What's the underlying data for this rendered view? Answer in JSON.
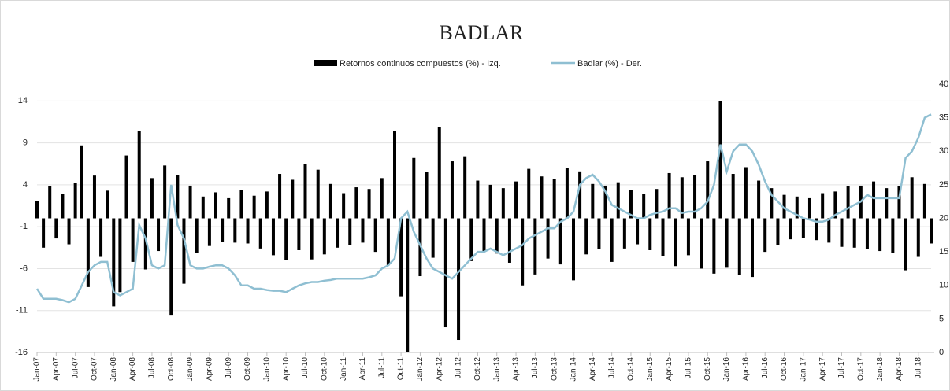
{
  "chart_data": {
    "type": "bar-line",
    "title": "BADLAR",
    "categories": [
      "Jan-07",
      null,
      null,
      "Apr-07",
      null,
      null,
      "Jul-07",
      null,
      null,
      "Oct-07",
      null,
      null,
      "Jan-08",
      null,
      null,
      "Apr-08",
      null,
      null,
      "Jul-08",
      null,
      null,
      "Oct-08",
      null,
      null,
      "Jan-09",
      null,
      null,
      "Apr-09",
      null,
      null,
      "Jul-09",
      null,
      null,
      "Oct-09",
      null,
      null,
      "Jan-10",
      null,
      null,
      "Apr-10",
      null,
      null,
      "Jul-10",
      null,
      null,
      "Oct-10",
      null,
      null,
      "Jan-11",
      null,
      null,
      "Apr-11",
      null,
      null,
      "Jul-11",
      null,
      null,
      "Oct-11",
      null,
      null,
      "Jan-12",
      null,
      null,
      "Apr-12",
      null,
      null,
      "Jul-12",
      null,
      null,
      "Oct-12",
      null,
      null,
      "Jan-13",
      null,
      null,
      "Apr-13",
      null,
      null,
      "Jul-13",
      null,
      null,
      "Oct-13",
      null,
      null,
      "Jan-14",
      null,
      null,
      "Apr-14",
      null,
      null,
      "Jul-14",
      null,
      null,
      "Oct-14",
      null,
      null,
      "Jan-15",
      null,
      null,
      "Apr-15",
      null,
      null,
      "Jul-15",
      null,
      null,
      "Oct-15",
      null,
      null,
      "Jan-16",
      null,
      null,
      "Apr-16",
      null,
      null,
      "Jul-16",
      null,
      null,
      "Oct-16",
      null,
      null,
      "Jan-17",
      null,
      null,
      "Apr-17",
      null,
      null,
      "Jul-17",
      null,
      null,
      "Oct-17",
      null,
      null,
      "Jan-18",
      null,
      null,
      "Apr-18",
      null,
      null,
      "Jul-18",
      null,
      null
    ],
    "series": [
      {
        "name": "Retornos continuos compuestos (%) - Izq.",
        "color": "#000000",
        "kind": "bar",
        "values": [
          2.1,
          -3.5,
          3.8,
          -2.4,
          2.9,
          -3.1,
          4.2,
          8.7,
          -8.2,
          5.1,
          -4.6,
          3.3,
          -10.5,
          -8.8,
          7.5,
          -5.2,
          10.4,
          -6.1,
          4.8,
          -3.9,
          6.3,
          -11.6,
          5.2,
          -7.8,
          3.9,
          -4.1,
          2.6,
          -3.3,
          3.1,
          -2.8,
          2.4,
          -2.9,
          3.4,
          -3.0,
          2.7,
          -3.6,
          3.2,
          -4.4,
          5.3,
          -5.0,
          4.6,
          -3.8,
          6.5,
          -4.9,
          5.8,
          -4.3,
          4.1,
          -3.5,
          3.0,
          -3.2,
          3.7,
          -2.9,
          3.5,
          -4.0,
          4.8,
          -5.6,
          10.4,
          -9.3,
          -16.0,
          7.2,
          -6.9,
          5.5,
          -4.7,
          10.9,
          -13.0,
          6.8,
          -14.5,
          7.4,
          -5.1,
          4.5,
          -3.9,
          4.0,
          -4.2,
          3.6,
          -5.3,
          4.4,
          -8.0,
          5.9,
          -6.7,
          5.0,
          -4.8,
          4.7,
          -5.5,
          6.0,
          -7.4,
          5.6,
          -4.3,
          4.1,
          -3.7,
          3.9,
          -5.2,
          4.3,
          -3.6,
          3.4,
          -3.1,
          2.9,
          -3.8,
          3.5,
          -4.5,
          5.4,
          -5.7,
          4.9,
          -4.4,
          5.2,
          -6.0,
          6.8,
          -6.6,
          14.0,
          -5.9,
          5.3,
          -6.8,
          6.1,
          -7.0,
          4.5,
          -4.0,
          3.6,
          -3.2,
          2.8,
          -2.5,
          2.6,
          -2.3,
          2.4,
          -2.6,
          3.0,
          -2.9,
          3.2,
          -3.4,
          3.8,
          -3.5,
          3.9,
          -3.7,
          4.4,
          -3.9,
          3.6,
          -4.1,
          3.8,
          -6.2,
          4.9,
          -4.6,
          4.1,
          -3.0
        ]
      },
      {
        "name": "Badlar (%) - Der.",
        "color": "#8fbfd2",
        "kind": "line",
        "axis": "y2",
        "values": [
          9.5,
          8,
          8,
          8,
          7.8,
          7.5,
          8,
          10,
          12,
          13,
          13.5,
          13.5,
          9,
          8.5,
          9,
          9.5,
          19,
          17,
          13,
          12.5,
          13,
          25,
          19,
          17,
          13,
          12.5,
          12.5,
          12.8,
          13,
          13,
          12.5,
          11.5,
          10,
          10,
          9.5,
          9.5,
          9.3,
          9.2,
          9.2,
          9,
          9.5,
          10,
          10.3,
          10.5,
          10.5,
          10.7,
          10.8,
          11,
          11,
          11,
          11,
          11,
          11.2,
          11.5,
          12.5,
          13,
          14,
          20,
          21,
          18,
          16,
          14,
          12.5,
          12,
          11.5,
          11,
          12,
          13,
          14,
          15,
          15,
          15.5,
          15,
          14.5,
          15,
          15.5,
          16,
          17,
          17.5,
          18,
          18.5,
          18.5,
          19.5,
          20,
          21,
          25,
          26,
          26.5,
          25.5,
          24,
          22,
          21.5,
          21,
          20.5,
          20,
          20,
          20.5,
          20.8,
          21,
          21.5,
          21.5,
          20.8,
          21,
          21,
          21.5,
          22.5,
          25,
          31,
          27,
          30,
          31,
          31,
          30,
          28,
          25.5,
          23.5,
          22.5,
          21.5,
          21,
          20.5,
          20,
          19.8,
          19.5,
          19.5,
          19.8,
          20.5,
          21,
          21.5,
          22,
          22.5,
          23.5,
          23,
          23,
          23,
          23,
          23,
          29,
          30,
          32,
          35,
          35.5
        ]
      }
    ],
    "ylim": [
      -16,
      16
    ],
    "yticks": [
      -16,
      -11,
      -6,
      -1,
      4,
      9,
      14
    ],
    "y2lim": [
      0,
      40
    ],
    "y2ticks": [
      0,
      5,
      10,
      15,
      20,
      25,
      30,
      35,
      40
    ],
    "grid": true,
    "legend": "top"
  }
}
